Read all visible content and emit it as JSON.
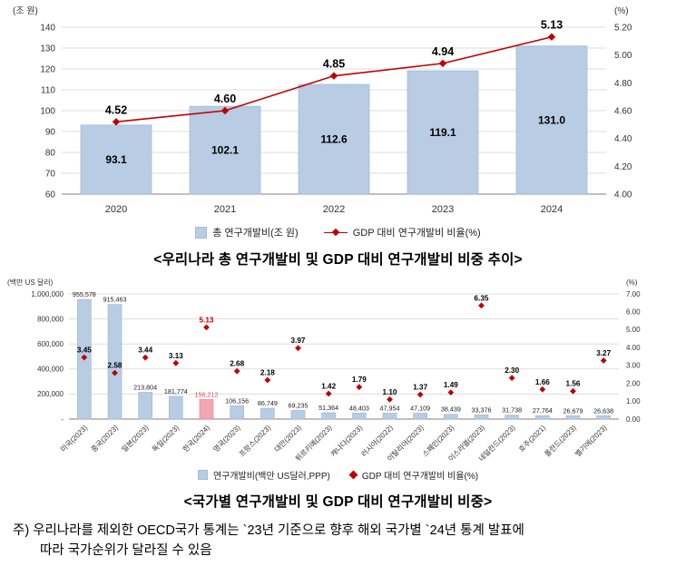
{
  "titles": {
    "trend": "<우리나라 총 연구개발비 및 GDP 대비 연구개발비 비중 추이>",
    "country": "<국가별 연구개발비 및 GDP 대비 연구개발비 비중>"
  },
  "footnote": {
    "line1": "주) 우리나라를 제외한 OECD국가 통계는 `23년 기준으로 향후 해외 국가별 `24년 통계 발표에",
    "line2": "따라 국가순위가 달라질 수 있음"
  },
  "colors": {
    "bar_blue": "#b8cce4",
    "bar_blue_stroke": "#a3bcd9",
    "korea_bar": "#f3a6b2",
    "korea_bar_stroke": "#e58e9d",
    "korea_value_text": "#d9455f",
    "line_red": "#c00000",
    "grid": "#dddddd",
    "axis": "#9b9b9b",
    "text": "#333333"
  },
  "chart_data": [
    {
      "type": "bar",
      "subtype": "bar+line-dual-axis",
      "unit_left": "(조 원)",
      "unit_right": "(%)",
      "categories": [
        "2020",
        "2021",
        "2022",
        "2023",
        "2024"
      ],
      "series": [
        {
          "name": "총 연구개발비(조 원)",
          "type": "bar",
          "axis": "left",
          "values": [
            "93.1",
            "102.1",
            "112.6",
            "119.1",
            "131.0"
          ]
        },
        {
          "name": "GDP 대비 연구개발비 비율(%)",
          "type": "line",
          "axis": "right",
          "values": [
            "4.52",
            "4.60",
            "4.85",
            "4.94",
            "5.13"
          ]
        }
      ],
      "ylim": [
        60,
        140
      ],
      "y2lim": [
        4.0,
        5.2
      ],
      "left_ticks": [
        "140",
        "130",
        "120",
        "110",
        "100",
        "90",
        "80",
        "70",
        "60"
      ],
      "right_ticks": [
        "5.20",
        "5.00",
        "4.80",
        "4.60",
        "4.40",
        "4.20",
        "4.00"
      ],
      "grid": "horizontal",
      "legend_position": "bottom",
      "legend": [
        "총 연구개발비(조 원)",
        "GDP 대비 연구개발비 비율(%)"
      ]
    },
    {
      "type": "bar",
      "subtype": "bar+scatter-dual-axis",
      "unit_left": "(백만 US 달러)",
      "unit_right": "(%)",
      "categories": [
        "미국(2023)",
        "중국(2023)",
        "일본(2023)",
        "독일(2023)",
        "한국(2024)",
        "영국(2023)",
        "프랑스(2023)",
        "대만(2023)",
        "튀르키예(2023)",
        "캐나다(2023)",
        "러시아(2022)",
        "이탈리아(2023)",
        "스페인(2023)",
        "이스라엘(2023)",
        "네덜란드(2023)",
        "호주(2021)",
        "폴란드(2023)",
        "벨기에(2023)"
      ],
      "series": [
        {
          "name": "연구개발비(백만 US달러,PPP)",
          "type": "bar",
          "axis": "left",
          "values": [
            "955,578",
            "915,463",
            "213,804",
            "181,774",
            "156,212",
            "106,156",
            "86,749",
            "69,235",
            "51,364",
            "48,403",
            "47,954",
            "47,109",
            "38,439",
            "33,376",
            "31,738",
            "27,764",
            "26,679",
            "26,638"
          ]
        },
        {
          "name": "GDP 대비 연구개발비 비율(%)",
          "type": "scatter",
          "axis": "right",
          "values": [
            "3.45",
            "2.58",
            "3.44",
            "3.13",
            "5.13",
            "2.68",
            "2.18",
            "3.97",
            "1.42",
            "1.79",
            "1.10",
            "1.37",
            "1.49",
            "6.35",
            "2.30",
            "1.66",
            "1.56",
            "3.27"
          ]
        }
      ],
      "highlight_index": 4,
      "ylim": [
        0,
        1000000
      ],
      "y2lim": [
        0,
        7
      ],
      "left_ticks": [
        "1,000,000",
        "800,000",
        "600,000",
        "400,000",
        "200,000",
        "-"
      ],
      "right_ticks": [
        "7.00",
        "6.00",
        "5.00",
        "4.00",
        "3.00",
        "2.00",
        "1.00",
        "0.00"
      ],
      "grid": "horizontal",
      "legend_position": "bottom",
      "legend": [
        "연구개발비(백만 US달러,PPP)",
        "GDP 대비 연구개발비 비율(%)"
      ]
    }
  ]
}
